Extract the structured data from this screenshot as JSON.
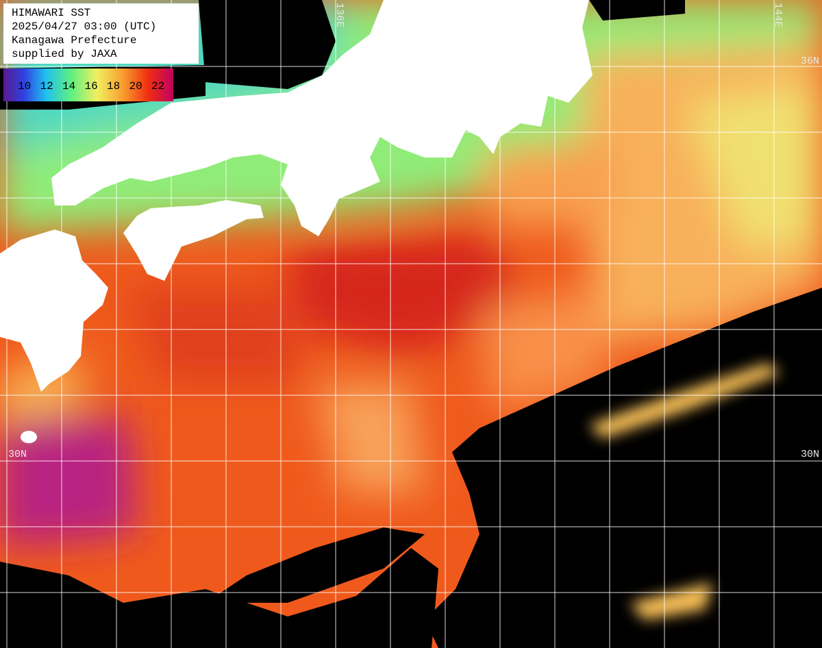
{
  "legend_box": {
    "lines": [
      "HIMAWARI SST",
      "2025/04/27 03:00 (UTC)",
      "Kanagawa Prefecture",
      "supplied by JAXA"
    ]
  },
  "color_scale": {
    "labels": [
      10,
      12,
      14,
      16,
      18,
      20,
      22
    ]
  },
  "grid_labels": {
    "lon": [
      "136E",
      "144E"
    ],
    "lat_top_right": "36N",
    "lat_left": "30N",
    "lat_right": "30N"
  }
}
